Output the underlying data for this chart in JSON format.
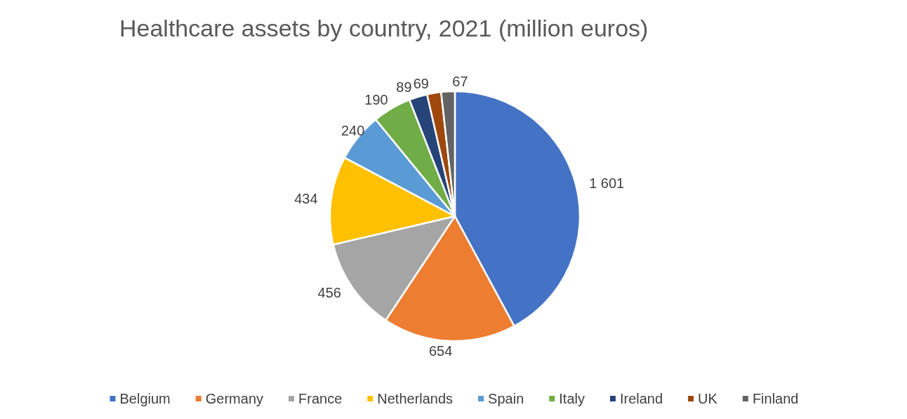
{
  "chart_data": {
    "type": "pie",
    "title": "Healthcare assets by country, 2021 (million euros)",
    "categories": [
      "Belgium",
      "Germany",
      "France",
      "Netherlands",
      "Spain",
      "Italy",
      "Ireland",
      "UK",
      "Finland"
    ],
    "values": [
      1601,
      654,
      456,
      434,
      240,
      190,
      89,
      69,
      67
    ],
    "value_labels": [
      "1 601",
      "654",
      "456",
      "434",
      "240",
      "190",
      "89",
      "69",
      "67"
    ],
    "colors": [
      "#4472c4",
      "#ed7d31",
      "#a5a5a5",
      "#ffc000",
      "#5b9bd5",
      "#70ad47",
      "#264478",
      "#9e480e",
      "#636363"
    ],
    "legend": "bottom"
  }
}
